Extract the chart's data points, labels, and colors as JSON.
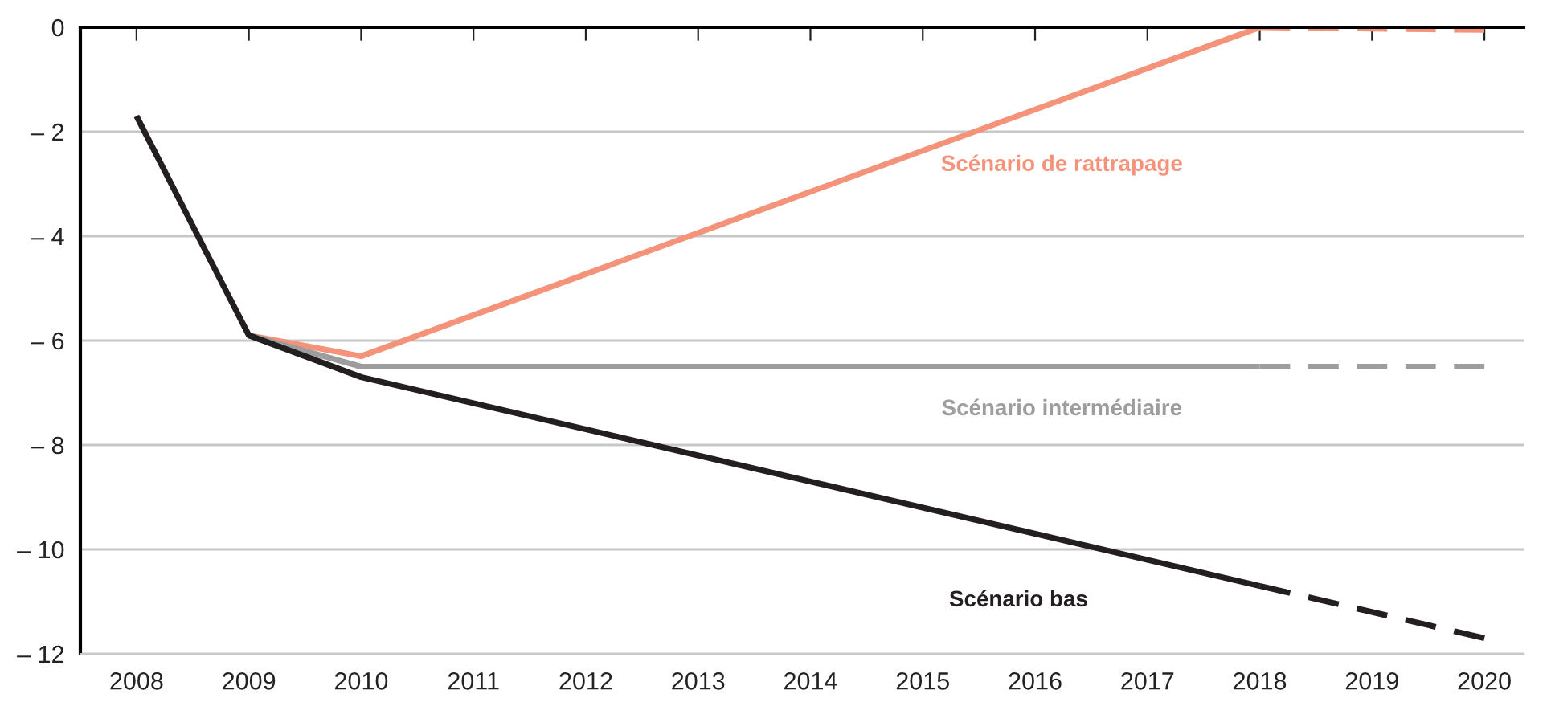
{
  "chart_data": {
    "type": "line",
    "series": [
      {
        "name": "Scénario de rattrapage",
        "color": "#f4937a",
        "x": [
          2009,
          2010,
          2018
        ],
        "values": [
          -5.9,
          -6.3,
          0
        ],
        "line_style": "solid"
      },
      {
        "color": "#f4937a",
        "x": [
          2018,
          2020
        ],
        "values": [
          0,
          -0.05
        ],
        "line_style": "dashed"
      },
      {
        "name": "Scénario intermédiaire",
        "color": "#9d9d9d",
        "x": [
          2009,
          2010,
          2018
        ],
        "values": [
          -5.9,
          -6.5,
          -6.5
        ],
        "line_style": "solid"
      },
      {
        "color": "#9d9d9d",
        "x": [
          2018,
          2020
        ],
        "values": [
          -6.5,
          -6.5
        ],
        "line_style": "dashed"
      },
      {
        "name": "Scénario bas",
        "color": "#231f20",
        "x": [
          2008,
          2009,
          2010,
          2018
        ],
        "values": [
          -1.7,
          -5.9,
          -6.7,
          -10.7
        ],
        "line_style": "solid"
      },
      {
        "color": "#231f20",
        "x": [
          2018,
          2020
        ],
        "values": [
          -10.7,
          -11.7
        ],
        "line_style": "dashed"
      }
    ],
    "xlim": [
      2007.5,
      2020.35
    ],
    "xticks": [
      2008,
      2009,
      2010,
      2011,
      2012,
      2013,
      2014,
      2015,
      2016,
      2017,
      2018,
      2019,
      2020
    ],
    "ylim": [
      -12,
      0
    ],
    "yticks": [
      0,
      {
        "value": -2,
        "label": "– 2"
      },
      {
        "value": -4,
        "label": "– 4"
      },
      {
        "value": -6,
        "label": "– 6"
      },
      {
        "value": -8,
        "label": "– 8"
      },
      {
        "value": -10,
        "label": "– 10"
      },
      {
        "value": -12,
        "label": "– 12"
      }
    ],
    "grid": "y",
    "legend": false,
    "marker": "none"
  }
}
